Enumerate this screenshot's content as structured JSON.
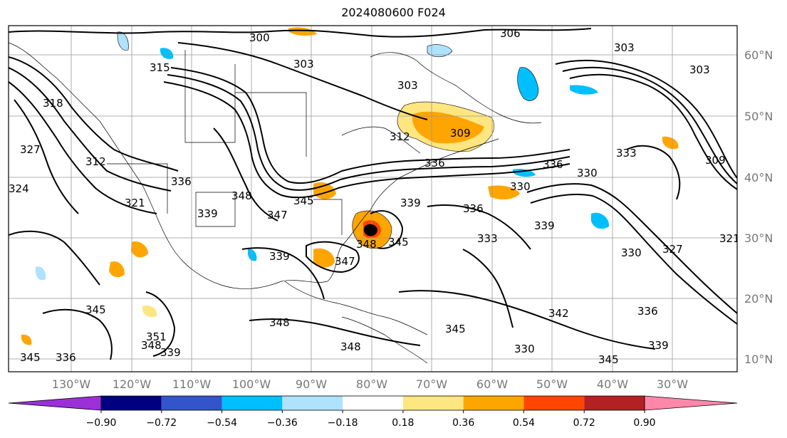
{
  "title": "2024080600 F024",
  "latitudes": [
    "10°N",
    "20°N",
    "30°N",
    "40°N",
    "50°N",
    "60°N"
  ],
  "longitudes": [
    "130°W",
    "120°W",
    "110°W",
    "100°W",
    "90°W",
    "80°W",
    "70°W",
    "60°W",
    "50°W",
    "40°W",
    "30°W"
  ],
  "contour_labels": [
    "300",
    "303",
    "303",
    "306",
    "303",
    "303",
    "315",
    "312",
    "309",
    "327",
    "324",
    "318",
    "321",
    "312",
    "336",
    "348",
    "345",
    "339",
    "347",
    "339",
    "348",
    "339",
    "345",
    "347",
    "348",
    "345",
    "336",
    "330",
    "330",
    "336",
    "339",
    "336",
    "333",
    "330",
    "309",
    "327",
    "321",
    "336",
    "333",
    "345",
    "336",
    "330",
    "339",
    "351",
    "348",
    "339",
    "345",
    "345",
    "348",
    "342"
  ],
  "colorbar": {
    "ticks": [
      "−0.90",
      "−0.72",
      "−0.54",
      "−0.36",
      "−0.18",
      "0.18",
      "0.36",
      "0.54",
      "0.72",
      "0.90"
    ],
    "colors": [
      "#9b30d9",
      "#000080",
      "#3355cc",
      "#00bfff",
      "#aee2ff",
      "#ffffff",
      "#ffe680",
      "#ffa500",
      "#ff4500",
      "#b22222",
      "#ff88aa"
    ]
  }
}
